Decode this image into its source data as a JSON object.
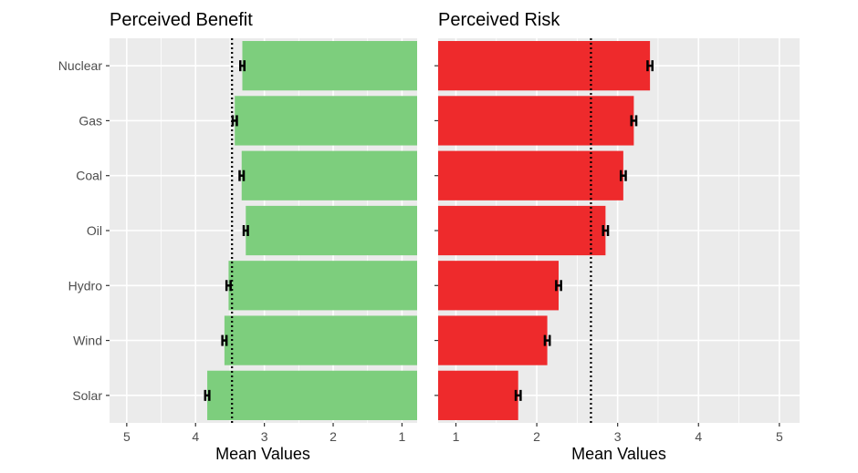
{
  "chart_data": [
    {
      "type": "bar",
      "orientation": "horizontal",
      "title": "Perceived Benefit",
      "xlabel": "Mean Values",
      "ylabel": "",
      "x_axis_reversed": true,
      "xlim": [
        5.25,
        0.78
      ],
      "x_ticks": [
        5,
        4,
        3,
        2,
        1
      ],
      "categories": [
        "Nuclear",
        "Gas",
        "Coal",
        "Oil",
        "Hydro",
        "Wind",
        "Solar"
      ],
      "values": [
        3.32,
        3.43,
        3.33,
        3.27,
        3.52,
        3.58,
        3.83
      ],
      "error": [
        0.03,
        0.03,
        0.03,
        0.03,
        0.03,
        0.03,
        0.03
      ],
      "reference_line": 3.47,
      "bar_color": "#7dce7d",
      "grid": true,
      "legend": "none"
    },
    {
      "type": "bar",
      "orientation": "horizontal",
      "title": "Perceived Risk",
      "xlabel": "Mean Values",
      "ylabel": "",
      "x_axis_reversed": false,
      "xlim": [
        0.78,
        5.25
      ],
      "x_ticks": [
        1,
        2,
        3,
        4,
        5
      ],
      "categories": [
        "Nuclear",
        "Gas",
        "Coal",
        "Oil",
        "Hydro",
        "Wind",
        "Solar"
      ],
      "values": [
        3.4,
        3.2,
        3.07,
        2.85,
        2.27,
        2.13,
        1.77
      ],
      "error": [
        0.03,
        0.03,
        0.03,
        0.03,
        0.03,
        0.03,
        0.03
      ],
      "reference_line": 2.67,
      "bar_color": "#ee2a2c",
      "grid": true,
      "legend": "none"
    }
  ]
}
